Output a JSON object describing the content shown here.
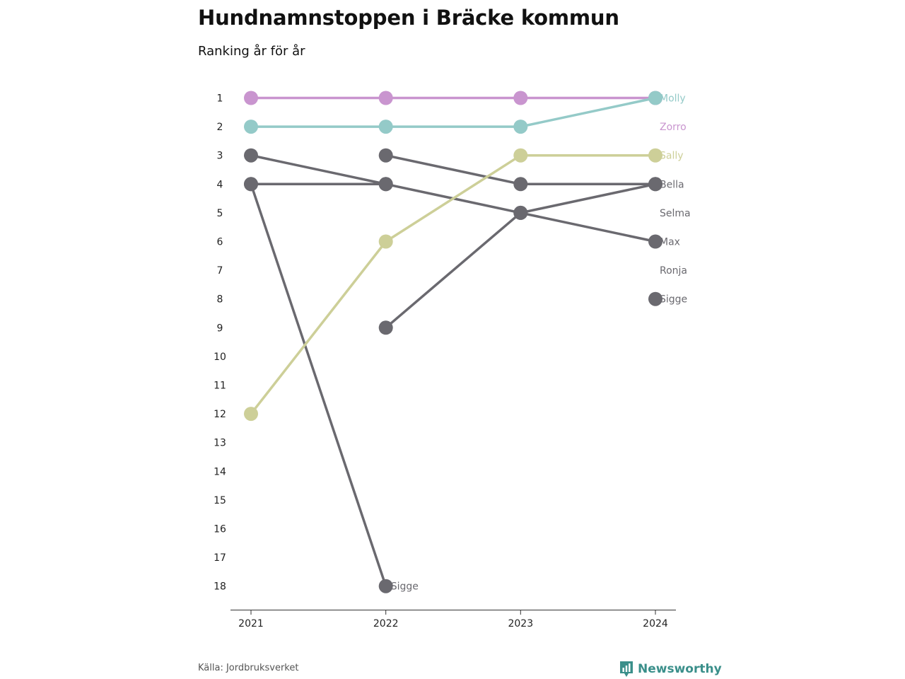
{
  "header": {
    "title": "Hundnamnstoppen i Bräcke kommun",
    "subtitle": "Ranking år för år"
  },
  "footer": {
    "source": "Källa: Jordbruksverket",
    "brand": "Newsworthy"
  },
  "colors": {
    "pink": "#c995cf",
    "teal": "#94cac8",
    "olive": "#cdcf98",
    "gray": "#6a696f",
    "brand": "#3a8f8a"
  },
  "chart_data": {
    "type": "line",
    "title": "Hundnamnstoppen i Bräcke kommun",
    "subtitle": "Ranking år för år",
    "x": [
      "2021",
      "2022",
      "2023",
      "2024"
    ],
    "ylim": [
      18,
      1
    ],
    "y_inverted": true,
    "yticks": [
      "1",
      "2",
      "3",
      "4",
      "5",
      "6",
      "7",
      "8",
      "9",
      "10",
      "11",
      "12",
      "13",
      "14",
      "15",
      "16",
      "17",
      "18"
    ],
    "grid": false,
    "series": [
      {
        "name": "Sigge",
        "color": "#6a696f",
        "values": [
          4,
          18,
          null,
          8
        ]
      },
      {
        "name": "Ronja",
        "color": "#6a696f",
        "values": [
          null,
          9,
          5,
          4
        ]
      },
      {
        "name": "Max",
        "color": "#6a696f",
        "values": [
          3,
          4,
          5,
          6
        ]
      },
      {
        "name": "Selma",
        "color": "#6a696f",
        "values": [
          4,
          4,
          null,
          null
        ]
      },
      {
        "name": "Bella",
        "color": "#6a696f",
        "values": [
          null,
          3,
          4,
          4
        ]
      },
      {
        "name": "Sally",
        "color": "#cdcf98",
        "values": [
          12,
          6,
          3,
          3
        ]
      },
      {
        "name": "Zorro",
        "color": "#c995cf",
        "values": [
          1,
          1,
          1,
          1
        ]
      },
      {
        "name": "Molly",
        "color": "#94cac8",
        "values": [
          2,
          2,
          2,
          1
        ]
      }
    ],
    "end_labels": [
      {
        "text": "Molly",
        "rank": 1,
        "color": "#94cac8"
      },
      {
        "text": "Zorro",
        "rank": 2,
        "color": "#c995cf"
      },
      {
        "text": "Sally",
        "rank": 3,
        "color": "#cdcf98"
      },
      {
        "text": "Bella",
        "rank": 4,
        "color": "#6a696f"
      },
      {
        "text": "Selma",
        "rank": 5,
        "color": "#6a696f"
      },
      {
        "text": "Max",
        "rank": 6,
        "color": "#6a696f"
      },
      {
        "text": "Ronja",
        "rank": 7,
        "color": "#6a696f"
      },
      {
        "text": "Sigge",
        "rank": 8,
        "color": "#6a696f"
      }
    ],
    "annotations": [
      {
        "text": "Sigge",
        "x": "2022",
        "rank": 18,
        "color": "#6a696f"
      }
    ]
  }
}
